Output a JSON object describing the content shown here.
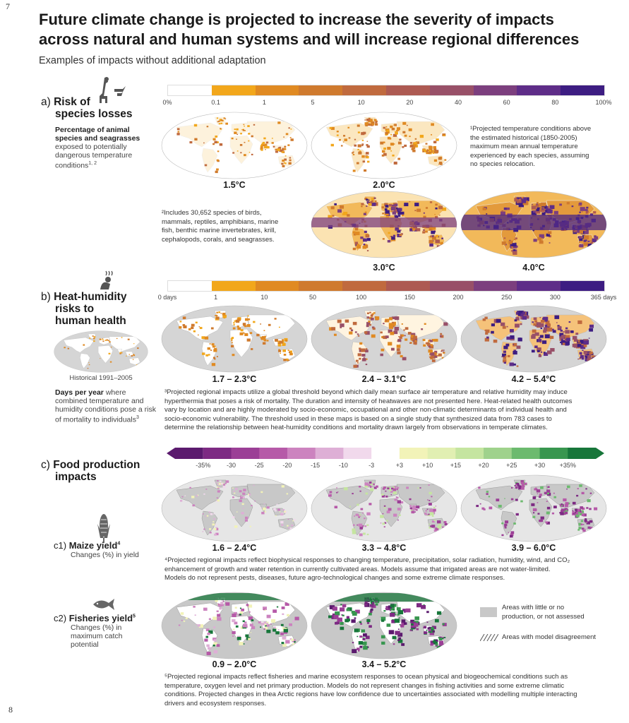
{
  "page_numbers": {
    "top": "7",
    "bottom": "8"
  },
  "title_line1": "Future climate change is projected to increase the severity of impacts",
  "title_line2": "across natural and human systems and will increase regional differences",
  "subtitle": "Examples of impacts without additional adaptation",
  "section_a": {
    "prefix": "a)",
    "title_line1": "Risk of",
    "title_line2": "species losses",
    "desc_bold": "Percentage of animal species and seagrasses",
    "desc_rest": "exposed to potentially dangerous temperature conditions",
    "desc_sup": "1, 2",
    "scale_ticks": [
      "0%",
      "0.1",
      "1",
      "5",
      "10",
      "20",
      "40",
      "60",
      "80",
      "100%"
    ],
    "scale_colors": [
      "#ffffff",
      "#f2a71b",
      "#e08a22",
      "#cf7a2e",
      "#c06a3e",
      "#ad5a52",
      "#985068",
      "#7c3f7e",
      "#5e2d88",
      "#3d1d82"
    ],
    "map_labels": [
      "1.5°C",
      "2.0°C",
      "3.0°C",
      "4.0°C"
    ],
    "note1": [
      "¹Projected temperature conditions above",
      "the estimated historical (1850-2005)",
      "maximum mean annual temperature",
      "experienced by each species, assuming",
      "no species relocation."
    ],
    "note2": [
      "²Includes 30,652 species of birds,",
      "mammals, reptiles, amphibians, marine",
      "fish, benthic marine invertebrates, krill,",
      "cephalopods, corals, and seagrasses."
    ]
  },
  "section_b": {
    "prefix": "b)",
    "title_line1": "Heat-humidity",
    "title_line2": "risks to",
    "title_line3": "human health",
    "scale_ticks": [
      "0 days",
      "1",
      "10",
      "50",
      "100",
      "150",
      "200",
      "250",
      "300",
      "365 days"
    ],
    "scale_colors": [
      "#ffffff",
      "#f2a71b",
      "#e08a22",
      "#cf7a2e",
      "#c06a3e",
      "#ad5a52",
      "#985068",
      "#7c3f7e",
      "#5e2d88",
      "#3d1d82"
    ],
    "historical_label": "Historical 1991–2005",
    "map_labels": [
      "1.7 – 2.3°C",
      "2.4 – 3.1°C",
      "4.2 – 5.4°C"
    ],
    "desc_bold": "Days per year",
    "desc_lines": [
      "where",
      "combined temperature and",
      "humidity conditions pose a risk",
      "of mortality to individuals"
    ],
    "desc_sup": "3",
    "note": [
      "³Projected regional impacts utilize a global threshold beyond which daily mean surface air temperature and relative humidity may induce",
      "hyperthermia that poses a risk of mortality. The duration and intensity of heatwaves are not presented here. Heat-related health outcomes",
      "vary by location and are highly moderated by socio-economic, occupational and other non-climatic determinants of individual health and",
      "socio-economic vulnerability. The threshold used in these maps is based on a single study that synthesized data from 783 cases to",
      "determine the relationship between heat-humidity conditions and mortality drawn largely from observations in temperate climates."
    ]
  },
  "section_c": {
    "prefix": "c)",
    "title_line1": "Food production",
    "title_line2": "impacts",
    "scale_ticks": [
      "-35%",
      "-30",
      "-25",
      "-20",
      "-15",
      "-10",
      "-3",
      "+3",
      "+10",
      "+15",
      "+20",
      "+25",
      "+30",
      "+35%"
    ],
    "scale_colors": [
      "#5b1a6e",
      "#7d2a83",
      "#9b3f96",
      "#b65aa8",
      "#cc83bf",
      "#deafd6",
      "#f1d9ec",
      "#ffffff",
      "#f2f3b8",
      "#e1efb2",
      "#c5e5a0",
      "#9fd28c",
      "#6cba6e",
      "#38964f",
      "#17763a"
    ],
    "c1": {
      "prefix": "c1)",
      "title": "Maize yield",
      "sup": "4",
      "desc": "Changes (%) in yield",
      "map_labels": [
        "1.6 – 2.4°C",
        "3.3 – 4.8°C",
        "3.9 – 6.0°C"
      ],
      "note": [
        "⁴Projected regional impacts reflect biophysical responses to changing temperature, precipitation, solar radiation, humidity, wind, and CO₂",
        "enhancement of growth and water retention in currently cultivated areas. Models assume that irrigated areas are not water-limited.",
        "Models do not represent pests, diseases, future agro-technological changes and some extreme climate responses."
      ]
    },
    "c2": {
      "prefix": "c2)",
      "title": "Fisheries yield",
      "sup": "5",
      "desc_lines": [
        "Changes (%) in",
        "maximum catch",
        "potential"
      ],
      "map_labels": [
        "0.9 – 2.0°C",
        "3.4 – 5.2°C"
      ],
      "note": [
        "⁵Projected regional impacts reflect fisheries and marine ecosystem responses to ocean physical and biogeochemical conditions such as",
        "temperature, oxygen level and net primary production. Models do not represent changes in fishing activities and some extreme climatic",
        "conditions. Projected changes in thea Arctic regions have low confidence due to uncertainties associated with modelling multiple interacting",
        "drivers and ecosystem responses."
      ]
    },
    "legend": {
      "gray_lines": [
        "Areas with little or no",
        "production, or not assessed"
      ],
      "hatch": "Areas with model disagreement"
    }
  },
  "icons": [
    "giraffe-icon",
    "fish-icon",
    "person-heat-icon",
    "maize-icon"
  ]
}
